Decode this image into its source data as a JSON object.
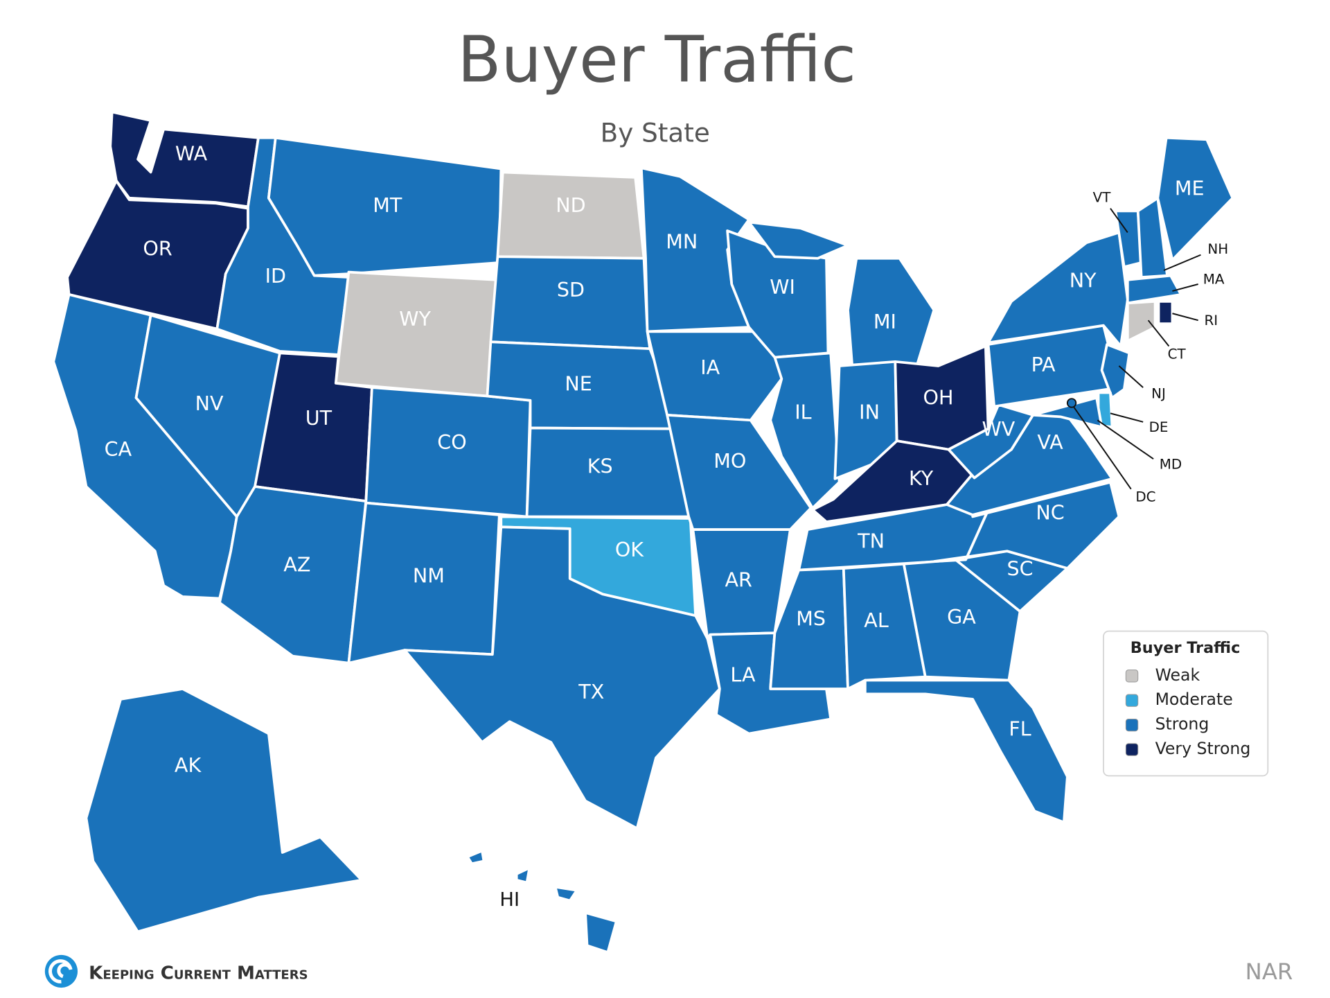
{
  "header": {
    "title": "Buyer Traffic",
    "subtitle": "By State"
  },
  "legend": {
    "title": "Buyer Traffic",
    "items": [
      {
        "label": "Weak",
        "color": "#c9c7c5"
      },
      {
        "label": "Moderate",
        "color": "#33a8dc"
      },
      {
        "label": "Strong",
        "color": "#1a72ba"
      },
      {
        "label": "Very Strong",
        "color": "#0e2360"
      }
    ]
  },
  "states": [
    {
      "label": "WA",
      "level": "Very Strong"
    },
    {
      "label": "OR",
      "level": "Very Strong"
    },
    {
      "label": "CA",
      "level": "Strong"
    },
    {
      "label": "NV",
      "level": "Strong"
    },
    {
      "label": "ID",
      "level": "Strong"
    },
    {
      "label": "MT",
      "level": "Strong"
    },
    {
      "label": "WY",
      "level": "Weak"
    },
    {
      "label": "UT",
      "level": "Very Strong"
    },
    {
      "label": "AZ",
      "level": "Strong"
    },
    {
      "label": "CO",
      "level": "Strong"
    },
    {
      "label": "NM",
      "level": "Strong"
    },
    {
      "label": "ND",
      "level": "Weak"
    },
    {
      "label": "SD",
      "level": "Strong"
    },
    {
      "label": "NE",
      "level": "Strong"
    },
    {
      "label": "KS",
      "level": "Strong"
    },
    {
      "label": "OK",
      "level": "Moderate"
    },
    {
      "label": "TX",
      "level": "Strong"
    },
    {
      "label": "MN",
      "level": "Strong"
    },
    {
      "label": "IA",
      "level": "Strong"
    },
    {
      "label": "MO",
      "level": "Strong"
    },
    {
      "label": "AR",
      "level": "Strong"
    },
    {
      "label": "LA",
      "level": "Strong"
    },
    {
      "label": "WI",
      "level": "Strong"
    },
    {
      "label": "IL",
      "level": "Strong"
    },
    {
      "label": "MI",
      "level": "Strong"
    },
    {
      "label": "IN",
      "level": "Strong"
    },
    {
      "label": "OH",
      "level": "Very Strong"
    },
    {
      "label": "KY",
      "level": "Very Strong"
    },
    {
      "label": "TN",
      "level": "Strong"
    },
    {
      "label": "MS",
      "level": "Strong"
    },
    {
      "label": "AL",
      "level": "Strong"
    },
    {
      "label": "GA",
      "level": "Strong"
    },
    {
      "label": "FL",
      "level": "Strong"
    },
    {
      "label": "SC",
      "level": "Strong"
    },
    {
      "label": "NC",
      "level": "Strong"
    },
    {
      "label": "VA",
      "level": "Strong"
    },
    {
      "label": "WV",
      "level": "Strong"
    },
    {
      "label": "PA",
      "level": "Strong"
    },
    {
      "label": "NY",
      "level": "Strong"
    },
    {
      "label": "NJ",
      "level": "Strong"
    },
    {
      "label": "DE",
      "level": "Moderate"
    },
    {
      "label": "MD",
      "level": "Strong"
    },
    {
      "label": "DC",
      "level": "Strong"
    },
    {
      "label": "VT",
      "level": "Strong"
    },
    {
      "label": "NH",
      "level": "Strong"
    },
    {
      "label": "ME",
      "level": "Strong"
    },
    {
      "label": "MA",
      "level": "Strong"
    },
    {
      "label": "CT",
      "level": "Weak"
    },
    {
      "label": "RI",
      "level": "Very Strong"
    },
    {
      "label": "AK",
      "level": "Strong"
    },
    {
      "label": "HI",
      "level": "Strong"
    }
  ],
  "footer": {
    "brand": "Keeping Current Matters",
    "source": "NAR"
  }
}
